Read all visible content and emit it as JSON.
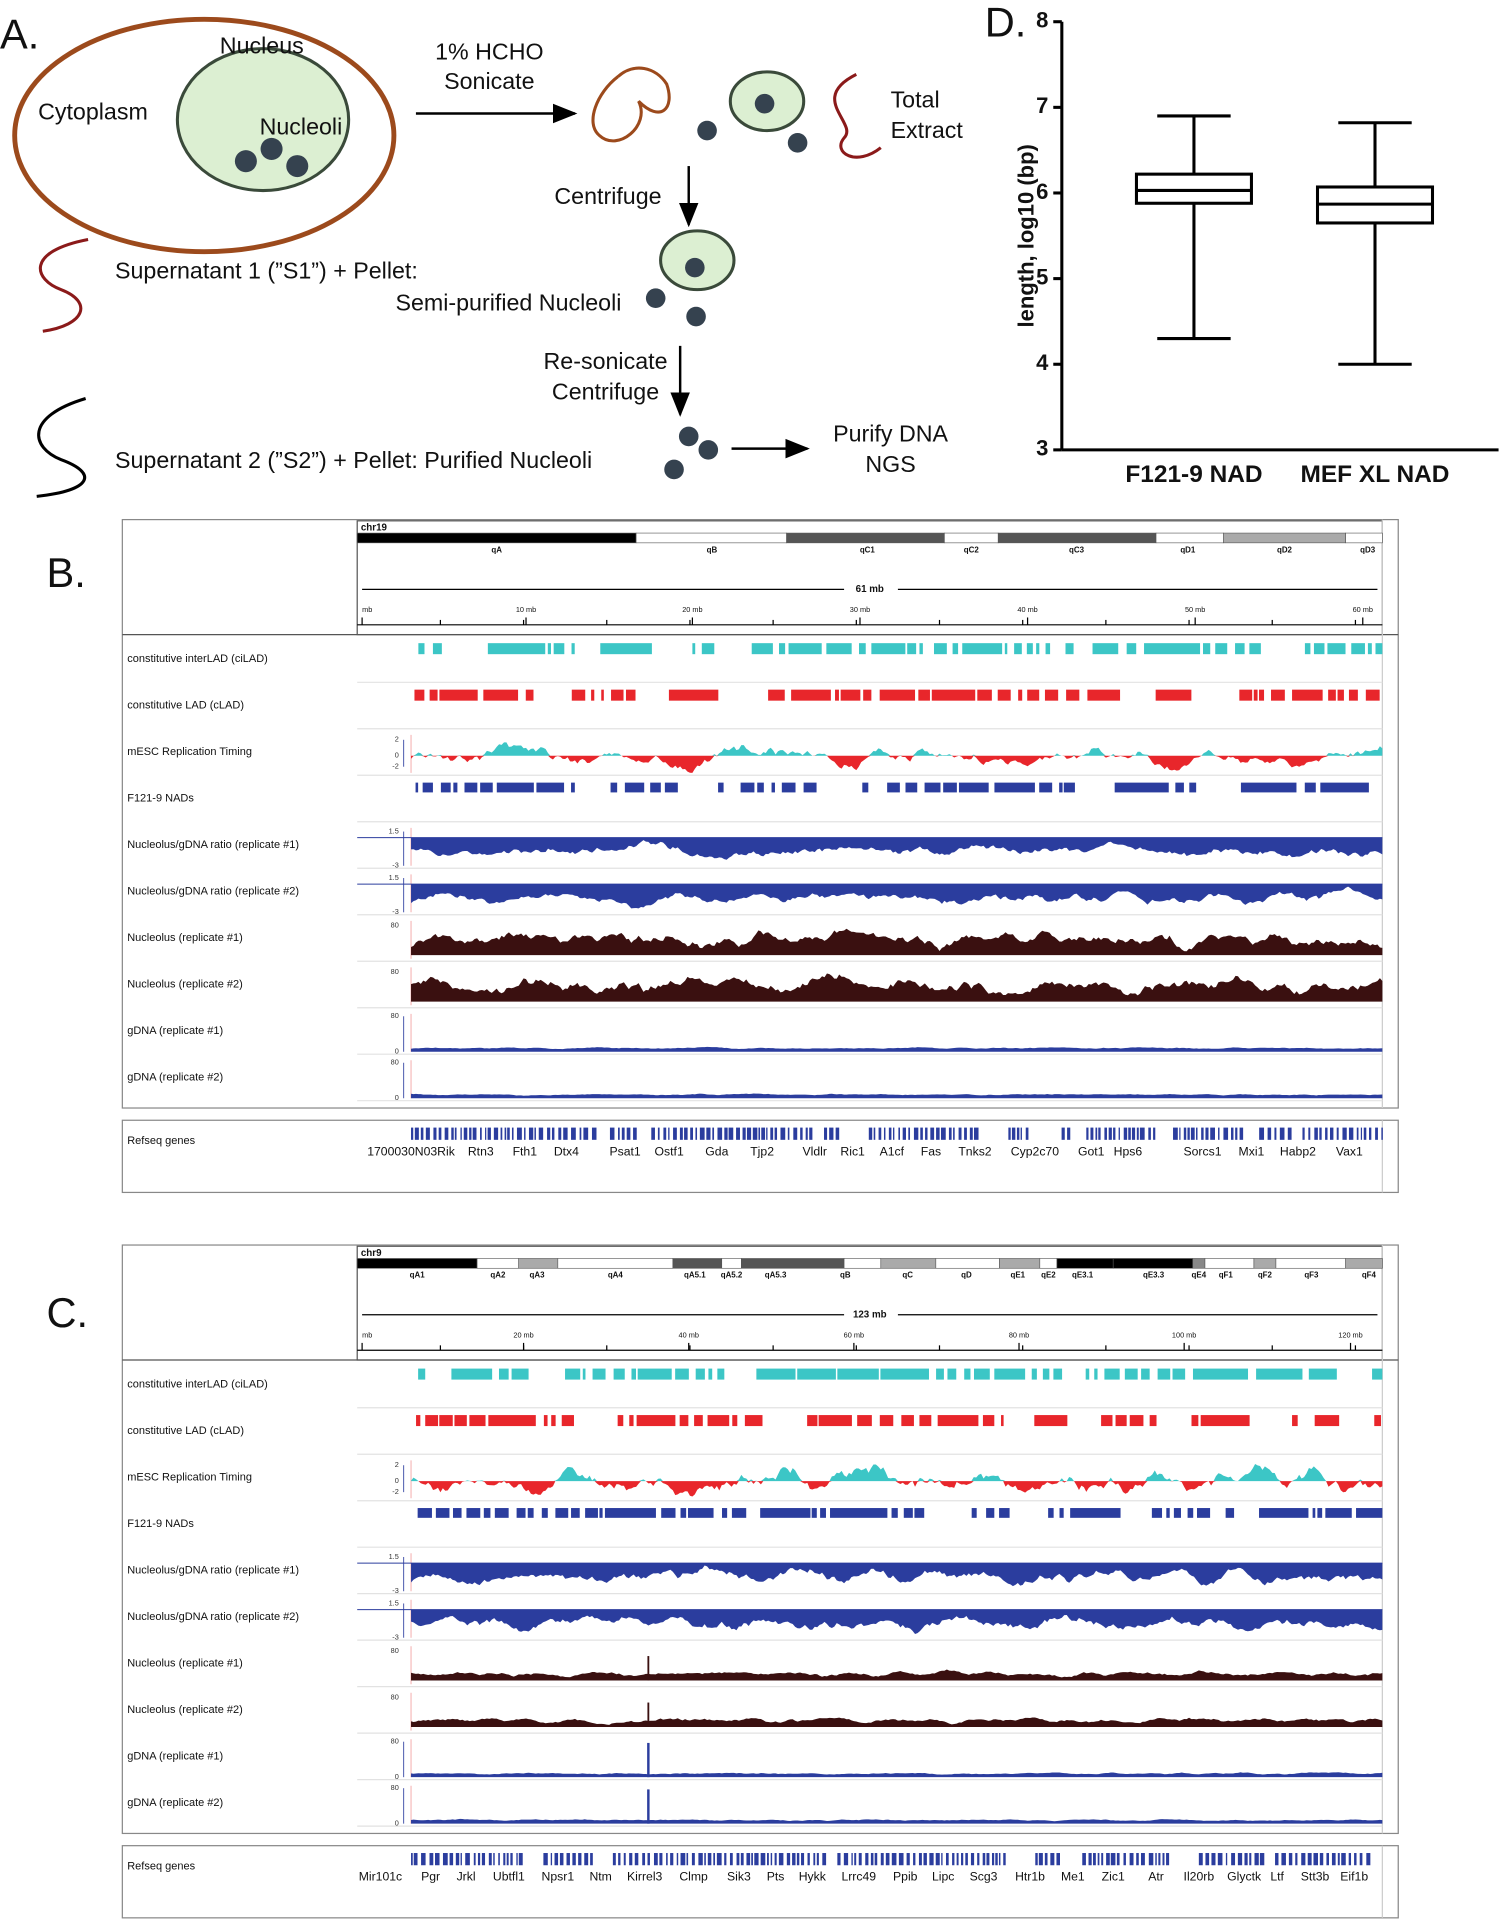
{
  "panel_a": {
    "label": "A.",
    "nucleus": "Nucleus",
    "cytoplasm": "Cytoplasm",
    "nucleoli": "Nucleoli",
    "step1": [
      "1% HCHO",
      "Sonicate"
    ],
    "total_extract": [
      "Total",
      "Extract"
    ],
    "step2": "Centrifuge",
    "s1": "Supernatant 1 (”S1”) + Pellet:",
    "s1_pellet": "Semi-purified Nucleoli",
    "step3": [
      "Re-sonicate",
      "Centrifuge"
    ],
    "s2": "Supernatant 2 (”S2”) + Pellet: Purified Nucleoli",
    "final": [
      "Purify DNA",
      "NGS"
    ]
  },
  "panel_d_label": "D.",
  "chart_data": {
    "type": "box",
    "ylabel": "length, log10 (bp)",
    "categories": [
      "F121-9 NAD",
      "MEF XL NAD"
    ],
    "min": [
      4.3,
      4.0
    ],
    "q1": [
      5.88,
      5.65
    ],
    "median": [
      6.03,
      5.87
    ],
    "q3": [
      6.22,
      6.07
    ],
    "max": [
      6.9,
      6.82
    ],
    "ylim": [
      3,
      8
    ],
    "yticks": [
      3,
      4,
      5,
      6,
      7,
      8
    ],
    "color": "#000000"
  },
  "panel_b": {
    "label": "B.",
    "chromosome": "chr19",
    "bands": [
      "qA",
      "qB",
      "qC1",
      "qC2",
      "qC3",
      "qD1",
      "qD2",
      "qD3"
    ],
    "size_label": "61 mb",
    "ruler": [
      "mb",
      "10 mb",
      "20 mb",
      "30 mb",
      "40 mb",
      "50 mb",
      "60 mb"
    ],
    "tracks": [
      {
        "name": "constitutive interLAD (ciLAD)",
        "kind": "segments",
        "color": "#3cc6c6",
        "scale": []
      },
      {
        "name": "constitutive LAD (cLAD)",
        "kind": "segments",
        "color": "#e8262b",
        "scale": []
      },
      {
        "name": "mESC Replication Timing",
        "kind": "timing",
        "color": "#3cc6c6",
        "color2": "#e8262b",
        "scale": [
          "2",
          "0",
          "-2"
        ]
      },
      {
        "name": "F121-9 NADs",
        "kind": "segments",
        "color": "#2b3d9e",
        "scale": []
      },
      {
        "name": "Nucleolus/gDNA ratio (replicate #1)",
        "kind": "ratio",
        "color": "#2b3d9e",
        "scale": [
          "1.5",
          "-3"
        ]
      },
      {
        "name": "Nucleolus/gDNA ratio (replicate #2)",
        "kind": "ratio",
        "color": "#2b3d9e",
        "scale": [
          "1.5",
          "-3"
        ]
      },
      {
        "name": "Nucleolus (replicate #1)",
        "kind": "signal",
        "color": "#3a1010",
        "scale": [
          "80"
        ]
      },
      {
        "name": "Nucleolus (replicate #2)",
        "kind": "signal",
        "color": "#3a1010",
        "scale": [
          "80"
        ]
      },
      {
        "name": "gDNA (replicate #1)",
        "kind": "gdna",
        "color": "#2b3d9e",
        "scale": [
          "80",
          "0"
        ]
      },
      {
        "name": "gDNA (replicate #2)",
        "kind": "gdna",
        "color": "#2b3d9e",
        "scale": [
          "80",
          "0"
        ]
      }
    ],
    "refseq_label": "Refseq genes",
    "genes": [
      "1700030N03Rik",
      "Rtn3",
      "Fth1",
      "Dtx4",
      "Psat1",
      "Ostf1",
      "Gda",
      "Tjp2",
      "Vldlr",
      "Ric1",
      "A1cf",
      "Fas",
      "Tnks2",
      "Cyp2c70",
      "Got1",
      "Hps6",
      "Sorcs1",
      "Mxi1",
      "Habp2",
      "Vax1"
    ]
  },
  "panel_c": {
    "label": "C.",
    "chromosome": "chr9",
    "bands": [
      "qA1",
      "qA2",
      "qA3",
      "qA4",
      "qA5.1",
      "qA5.2",
      "qA5.3",
      "qB",
      "qC",
      "qD",
      "qE1",
      "qE2",
      "qE3.1",
      "qE3.3",
      "qE4",
      "qF1",
      "qF2",
      "qF3",
      "qF4"
    ],
    "size_label": "123 mb",
    "ruler": [
      "mb",
      "20 mb",
      "40 mb",
      "60 mb",
      "80 mb",
      "100 mb",
      "120 mb"
    ],
    "tracks": [
      {
        "name": "constitutive interLAD (ciLAD)",
        "kind": "segments",
        "color": "#3cc6c6",
        "scale": []
      },
      {
        "name": "constitutive LAD (cLAD)",
        "kind": "segments",
        "color": "#e8262b",
        "scale": []
      },
      {
        "name": "mESC Replication Timing",
        "kind": "timing",
        "color": "#3cc6c6",
        "color2": "#e8262b",
        "scale": [
          "2",
          "0",
          "-2"
        ]
      },
      {
        "name": "F121-9 NADs",
        "kind": "segments",
        "color": "#2b3d9e",
        "scale": []
      },
      {
        "name": "Nucleolus/gDNA ratio (replicate #1)",
        "kind": "ratio",
        "color": "#2b3d9e",
        "scale": [
          "1.5",
          "-3"
        ]
      },
      {
        "name": "Nucleolus/gDNA ratio (replicate #2)",
        "kind": "ratio",
        "color": "#2b3d9e",
        "scale": [
          "1.5",
          "-3"
        ]
      },
      {
        "name": "Nucleolus (replicate #1)",
        "kind": "signal",
        "color": "#3a1010",
        "scale": [
          "80"
        ]
      },
      {
        "name": "Nucleolus (replicate #2)",
        "kind": "signal",
        "color": "#3a1010",
        "scale": [
          "80"
        ]
      },
      {
        "name": "gDNA (replicate #1)",
        "kind": "gdna",
        "color": "#2b3d9e",
        "scale": [
          "80",
          "0"
        ]
      },
      {
        "name": "gDNA (replicate #2)",
        "kind": "gdna",
        "color": "#2b3d9e",
        "scale": [
          "80",
          "0"
        ]
      }
    ],
    "refseq_label": "Refseq genes",
    "genes": [
      "Mir101c",
      "Pgr",
      "Jrkl",
      "Ubtfl1",
      "Npsr1",
      "Ntm",
      "Kirrel3",
      "Clmp",
      "Sik3",
      "Pts",
      "Hykk",
      "Lrrc49",
      "Ppib",
      "Lipc",
      "Scg3",
      "Htr1b",
      "Me1",
      "Zic1",
      "Atr",
      "Il20rb",
      "Glyctk",
      "Ltf",
      "Stt3b",
      "Eif1b"
    ]
  }
}
